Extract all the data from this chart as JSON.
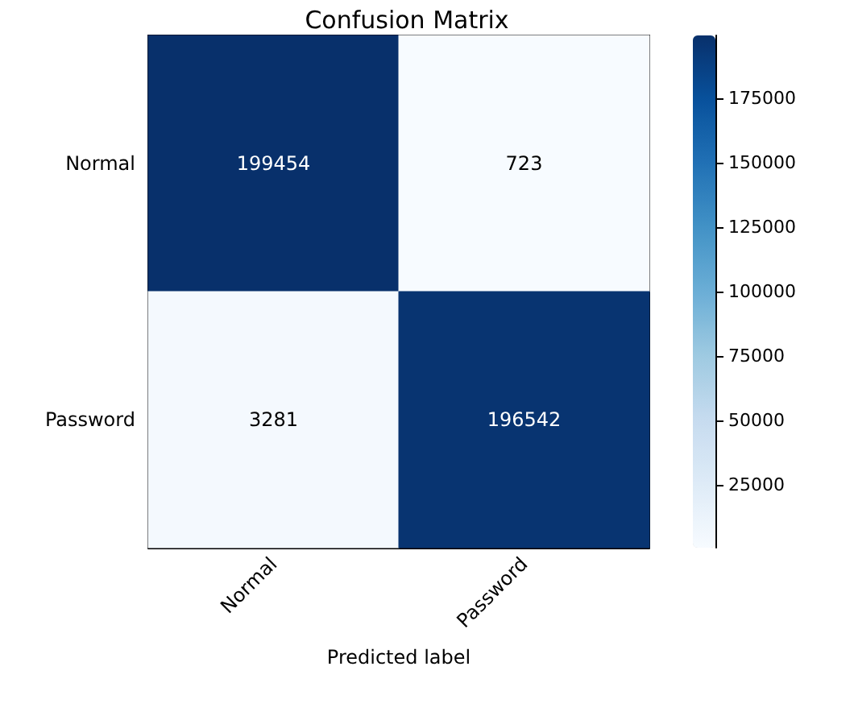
{
  "chart_data": {
    "type": "heatmap",
    "title": "Confusion Matrix",
    "xlabel": "Predicted label",
    "categories": [
      "Normal",
      "Password"
    ],
    "y_categories": [
      "Normal",
      "Password"
    ],
    "cells": [
      [
        199454,
        723
      ],
      [
        3281,
        196542
      ]
    ],
    "clim": [
      723,
      199454
    ],
    "cticks": [
      25000,
      50000,
      75000,
      100000,
      125000,
      150000,
      175000
    ],
    "data_labels": true
  }
}
